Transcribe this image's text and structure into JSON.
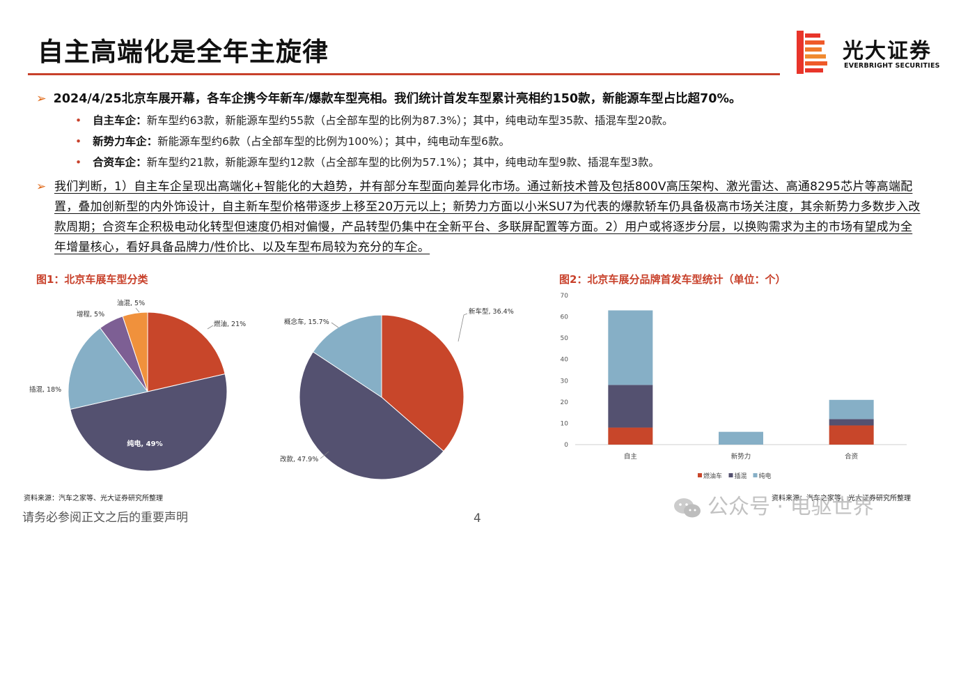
{
  "page": {
    "title": "自主高端化是全年主旋律",
    "logo_cn": "光大证券",
    "logo_en": "EVERBRIGHT SECURITIES",
    "bullet_main": "2024/4/25北京车展开幕，各车企携今年新车/爆款车型亮相。我们统计首发车型累计亮相约150款，新能源车型占比超70%。",
    "subs": [
      {
        "label": "自主车企：",
        "text": "新车型约63款，新能源车型约55款（占全部车型的比例为87.3%）；其中，纯电动车型35款、插混车型20款。"
      },
      {
        "label": "新势力车企：",
        "text": "新能源车型约6款（占全部车型的比例为100%）；其中，纯电动车型6款。"
      },
      {
        "label": "合资车企：",
        "text": "新车型约21款，新能源车型约12款（占全部车型的比例为57.1%）；其中，纯电动车型9款、插混车型3款。"
      }
    ],
    "paragraph": "我们判断，1）自主车企呈现出高端化+智能化的大趋势，并有部分车型面向差异化市场。通过新技术普及包括800V高压架构、激光雷达、高通8295芯片等高端配置，叠加创新型的内外饰设计，自主新车型价格带逐步上移至20万元以上；新势力方面以小米SU7为代表的爆款轿车仍具备极高市场关注度，其余新势力多数步入改款周期；合资车企积极电动化转型但速度仍相对偏慢，产品转型仍集中在全新平台、多联屏配置等方面。2）用户或将逐步分层，以换购需求为主的市场有望成为全年增量核心，看好具备品牌力/性价比、以及车型布局较为充分的车企。",
    "fig1_title": "图1：北京车展车型分类",
    "fig2_title": "图2：北京车展分品牌首发车型统计（单位：个）",
    "source_left": "资料来源：汽车之家等、光大证券研究所整理",
    "source_right": "资料来源：汽车之家等、光大证券研究所整理",
    "disclaimer": "请务必参阅正文之后的重要声明",
    "page_number": "4",
    "watermark": "公众号 · 电驱世界"
  },
  "colors": {
    "accent": "#c8402a",
    "orange_red": "#c8462a",
    "navy": "#545170",
    "light_blue": "#86afc6",
    "purple": "#7d5f94",
    "orange": "#f0913c"
  },
  "chart_data": [
    {
      "type": "pie",
      "slices": [
        {
          "label": "燃油, 21%",
          "value": 21,
          "color": "#c8462a"
        },
        {
          "label": "纯电, 49%",
          "value": 49,
          "color": "#545170"
        },
        {
          "label": "插混, 18%",
          "value": 18,
          "color": "#86afc6"
        },
        {
          "label": "增程, 5%",
          "value": 5,
          "color": "#7d5f94"
        },
        {
          "label": "油混, 5%",
          "value": 5,
          "color": "#f0913c"
        }
      ]
    },
    {
      "type": "pie",
      "slices": [
        {
          "label": "新车型, 36.4%",
          "value": 36.4,
          "color": "#c8462a"
        },
        {
          "label": "改款, 47.9%",
          "value": 47.9,
          "color": "#545170"
        },
        {
          "label": "概念车, 15.7%",
          "value": 15.7,
          "color": "#86afc6"
        }
      ]
    },
    {
      "type": "bar",
      "stacked": true,
      "categories": [
        "自主",
        "新势力",
        "合资"
      ],
      "series": [
        {
          "name": "燃油车",
          "values": [
            8,
            0,
            9
          ],
          "color": "#c8462a"
        },
        {
          "name": "插混",
          "values": [
            20,
            0,
            3
          ],
          "color": "#545170"
        },
        {
          "name": "纯电",
          "values": [
            35,
            6,
            9
          ],
          "color": "#86afc6"
        }
      ],
      "ylim": [
        0,
        70
      ],
      "yticks": [
        "0",
        "10",
        "20",
        "30",
        "40",
        "50",
        "60",
        "70"
      ],
      "legend": "bottom"
    }
  ]
}
